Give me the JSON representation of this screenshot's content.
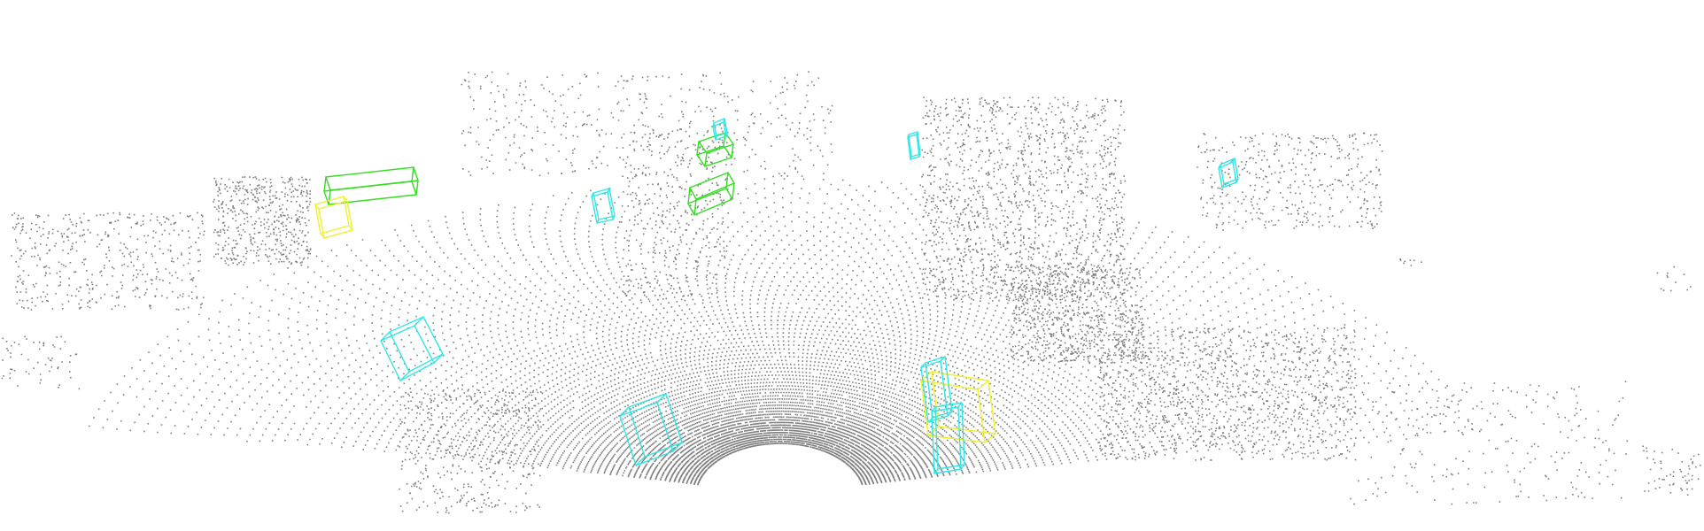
{
  "colors": {
    "background": "#ffffff",
    "points": "#7f7f7f",
    "box_car": "#00ff00",
    "box_pedestrian": "#00ffff",
    "box_cyclist": "#ffff00"
  },
  "boxes": [
    {
      "class": "car",
      "color": "#33dd22"
    },
    {
      "class": "car",
      "color": "#33dd22"
    },
    {
      "class": "car",
      "color": "#33dd22"
    },
    {
      "class": "cyclist",
      "color": "#f0f030"
    },
    {
      "class": "cyclist",
      "color": "#f0f030"
    },
    {
      "class": "pedestrian",
      "color": "#33e6e6"
    },
    {
      "class": "pedestrian",
      "color": "#33e6e6"
    },
    {
      "class": "pedestrian",
      "color": "#33e6e6"
    },
    {
      "class": "pedestrian",
      "color": "#33e6e6"
    },
    {
      "class": "pedestrian",
      "color": "#33e6e6"
    },
    {
      "class": "pedestrian",
      "color": "#33e6e6"
    },
    {
      "class": "pedestrian",
      "color": "#33e6e6"
    },
    {
      "class": "pedestrian",
      "color": "#33e6e6"
    }
  ]
}
